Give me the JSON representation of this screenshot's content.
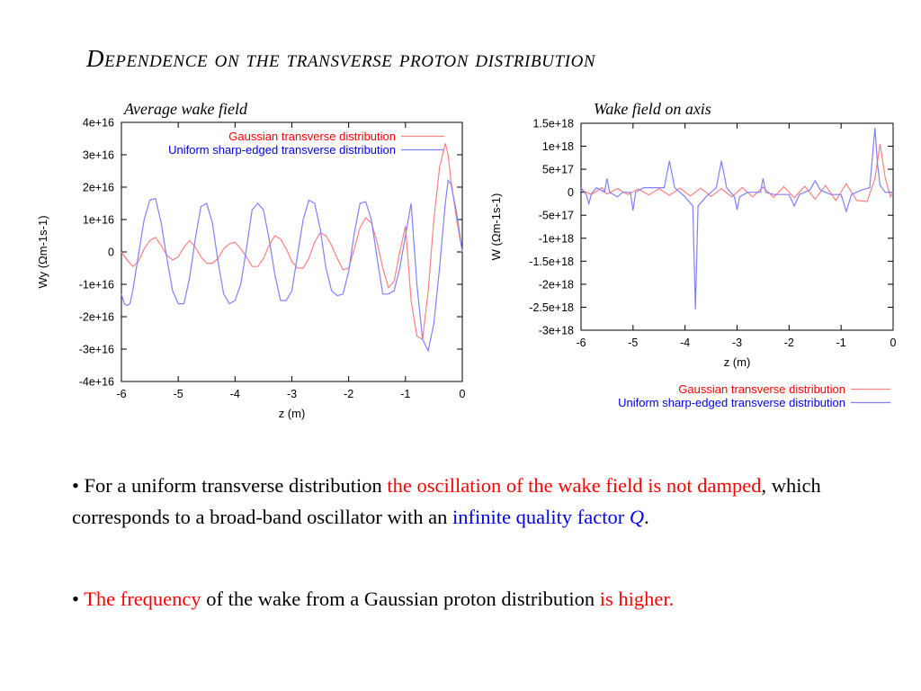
{
  "slide": {
    "title": "Dependence on the transverse proton distribution",
    "caption_left": "Average wake field",
    "caption_right": "Wake field on axis"
  },
  "bullets": {
    "b1": {
      "marker": "•",
      "t1": " For a uniform transverse distribution ",
      "t2": "the oscillation of the wake field is not damped",
      "t3": ", which corresponds to a broad-band oscillator with an ",
      "t4": "infinite quality factor ",
      "t5": "Q",
      "t6": "."
    },
    "b2": {
      "marker": "•",
      "t1": " The frequency",
      "t2": " of the wake from a Gaussian proton distribution ",
      "t3": "is higher."
    }
  },
  "colors": {
    "gaussian": "#ff8080",
    "uniform": "#8080ff",
    "legend_gaussian_text": "#ff0000",
    "legend_uniform_text": "#0000ee"
  },
  "chart_data": [
    {
      "type": "line",
      "xlabel": "z (m)",
      "ylabel": "Wy (Ωm-1s-1)",
      "xlim": [
        -6,
        0
      ],
      "ylim": [
        -4e+16,
        4e+16
      ],
      "xticks": [
        -6,
        -5,
        -4,
        -3,
        -2,
        -1,
        0
      ],
      "xtick_labels": [
        "-6",
        "-5",
        "-4",
        "-3",
        "-2",
        "-1",
        "0"
      ],
      "yticks": [
        4e+16,
        3e+16,
        2e+16,
        1e+16,
        0,
        -1e+16,
        -2e+16,
        -3e+16,
        -4e+16
      ],
      "ytick_labels": [
        "4e+16",
        "3e+16",
        "2e+16",
        "1e+16",
        "0",
        "-1e+16",
        "-2e+16",
        "-3e+16",
        "-4e+16"
      ],
      "legend_position": "top-right",
      "grid": false,
      "series": [
        {
          "name": "Gaussian transverse distribution",
          "x": [
            -6,
            -5.9,
            -5.8,
            -5.7,
            -5.6,
            -5.5,
            -5.4,
            -5.3,
            -5.2,
            -5.1,
            -5.0,
            -4.9,
            -4.8,
            -4.7,
            -4.6,
            -4.5,
            -4.4,
            -4.3,
            -4.2,
            -4.1,
            -4.0,
            -3.9,
            -3.8,
            -3.7,
            -3.6,
            -3.5,
            -3.4,
            -3.3,
            -3.2,
            -3.1,
            -3.0,
            -2.9,
            -2.8,
            -2.7,
            -2.6,
            -2.5,
            -2.4,
            -2.3,
            -2.2,
            -2.1,
            -2.0,
            -1.9,
            -1.8,
            -1.7,
            -1.6,
            -1.5,
            -1.4,
            -1.3,
            -1.2,
            -1.1,
            -1.0,
            -0.9,
            -0.8,
            -0.7,
            -0.6,
            -0.5,
            -0.4,
            -0.3,
            -0.25,
            -0.2,
            -0.1,
            0
          ],
          "y": [
            0,
            -2500000000000000.0,
            -4500000000000000.0,
            -3000000000000000.0,
            1000000000000000.0,
            3500000000000000.0,
            4500000000000000.0,
            2000000000000000.0,
            -1000000000000000.0,
            -2500000000000000.0,
            -1500000000000000.0,
            1500000000000000.0,
            3500000000000000.0,
            1500000000000000.0,
            -1500000000000000.0,
            -3500000000000000.0,
            -3500000000000000.0,
            -2000000000000000.0,
            1000000000000000.0,
            2500000000000000.0,
            3000000000000000.0,
            1000000000000000.0,
            -1500000000000000.0,
            -4500000000000000.0,
            -4500000000000000.0,
            -2000000000000000.0,
            2000000000000000.0,
            5000000000000000.0,
            4000000000000000.0,
            1000000000000000.0,
            -3000000000000000.0,
            -5000000000000000.0,
            -5000000000000000.0,
            -2000000000000000.0,
            3000000000000000.0,
            6000000000000000.0,
            5000000000000000.0,
            2000000000000000.0,
            -2000000000000000.0,
            -5500000000000000.0,
            -5000000000000000.0,
            1000000000000000.0,
            7500000000000000.0,
            1.05e+16,
            9000000000000000.0,
            3000000000000000.0,
            -5000000000000000.0,
            -1.1e+16,
            -9000000000000000.0,
            0,
            8000000000000000.0,
            -1.5e+16,
            -2.6e+16,
            -2.7e+16,
            -1.2e+16,
            1e+16,
            2.6e+16,
            3.35e+16,
            3e+16,
            2.2e+16,
            1e+16,
            0
          ]
        },
        {
          "name": "Uniform sharp-edged transverse distribution",
          "x": [
            -6,
            -5.95,
            -5.9,
            -5.85,
            -5.8,
            -5.7,
            -5.6,
            -5.5,
            -5.4,
            -5.3,
            -5.2,
            -5.1,
            -5.0,
            -4.9,
            -4.8,
            -4.7,
            -4.6,
            -4.5,
            -4.4,
            -4.3,
            -4.2,
            -4.1,
            -4.0,
            -3.9,
            -3.8,
            -3.7,
            -3.6,
            -3.5,
            -3.4,
            -3.3,
            -3.2,
            -3.1,
            -3.0,
            -2.9,
            -2.8,
            -2.7,
            -2.6,
            -2.5,
            -2.4,
            -2.3,
            -2.2,
            -2.1,
            -2.0,
            -1.9,
            -1.8,
            -1.7,
            -1.6,
            -1.5,
            -1.4,
            -1.3,
            -1.2,
            -1.1,
            -1.0,
            -0.9,
            -0.8,
            -0.7,
            -0.6,
            -0.5,
            -0.4,
            -0.3,
            -0.25,
            -0.2,
            -0.1,
            0
          ],
          "y": [
            -1.3e+16,
            -1.6e+16,
            -1.65e+16,
            -1.6e+16,
            -1.2e+16,
            -1000000000000000.0,
            1e+16,
            1.6e+16,
            1.65e+16,
            9000000000000000.0,
            -2000000000000000.0,
            -1.2e+16,
            -1.6e+16,
            -1.6e+16,
            -8000000000000000.0,
            4000000000000000.0,
            1.4e+16,
            1.5e+16,
            9000000000000000.0,
            -3000000000000000.0,
            -1.3e+16,
            -1.6e+16,
            -1.5e+16,
            -1e+16,
            1000000000000000.0,
            1.3e+16,
            1.5e+16,
            1.3e+16,
            4000000000000000.0,
            -7000000000000000.0,
            -1.5e+16,
            -1.5e+16,
            -1.2e+16,
            -1000000000000000.0,
            1e+16,
            1.6e+16,
            1.5e+16,
            7000000000000000.0,
            -5000000000000000.0,
            -1.2e+16,
            -1.35e+16,
            -1.3e+16,
            -6000000000000000.0,
            6000000000000000.0,
            1.5e+16,
            1.55e+16,
            1e+16,
            -2000000000000000.0,
            -1.3e+16,
            -1.3e+16,
            -1.2e+16,
            -5000000000000000.0,
            5000000000000000.0,
            1.5e+16,
            -1e+16,
            -2.7e+16,
            -3.05e+16,
            -2.2e+16,
            -5000000000000000.0,
            1.5e+16,
            2.2e+16,
            2.1e+16,
            1.2e+16,
            0
          ]
        }
      ]
    },
    {
      "type": "line",
      "xlabel": "z (m)",
      "ylabel": "W (Ωm-1s-1)",
      "xlim": [
        -6,
        0
      ],
      "ylim": [
        -3e+18,
        1.5e+18
      ],
      "xticks": [
        -6,
        -5,
        -4,
        -3,
        -2,
        -1,
        0
      ],
      "xtick_labels": [
        "-6",
        "-5",
        "-4",
        "-3",
        "-2",
        "-1",
        "0"
      ],
      "yticks": [
        1.5e+18,
        1e+18,
        5e+17,
        0,
        -5e+17,
        -1e+18,
        -1.5e+18,
        -2e+18,
        -2.5e+18,
        -3e+18
      ],
      "ytick_labels": [
        "1.5e+18",
        "1e+18",
        "5e+17",
        "0",
        "-5e+17",
        "-1e+18",
        "-1.5e+18",
        "-2e+18",
        "-2.5e+18",
        "-3e+18"
      ],
      "legend_position": "bottom-center",
      "grid": false,
      "series": [
        {
          "name": "Gaussian transverse distribution",
          "x": [
            -6,
            -5.8,
            -5.6,
            -5.5,
            -5.3,
            -5.1,
            -4.9,
            -4.7,
            -4.5,
            -4.3,
            -4.1,
            -3.9,
            -3.7,
            -3.5,
            -3.3,
            -3.1,
            -2.9,
            -2.7,
            -2.5,
            -2.3,
            -2.1,
            -1.9,
            -1.7,
            -1.5,
            -1.3,
            -1.1,
            -0.9,
            -0.7,
            -0.5,
            -0.35,
            -0.25,
            -0.15,
            -0.05,
            0
          ],
          "y": [
            5e+16,
            -5e+16,
            1e+17,
            -4e+16,
            8e+16,
            -5e+16,
            7e+16,
            -6e+16,
            8e+16,
            -7e+16,
            9e+16,
            -8e+16,
            9e+16,
            -9e+16,
            8e+16,
            -1e+17,
            1e+17,
            -1e+17,
            1.1e+17,
            -1.1e+17,
            1.2e+17,
            -1.2e+17,
            1.3e+17,
            -1.5e+17,
            1.5e+17,
            -1.8e+17,
            1.9e+17,
            -1.8e+17,
            -2e+17,
            3e+17,
            1.05e+18,
            3e+17,
            -1e+17,
            0
          ]
        },
        {
          "name": "Uniform sharp-edged transverse distribution",
          "x": [
            -6,
            -5.9,
            -5.85,
            -5.8,
            -5.7,
            -5.55,
            -5.5,
            -5.45,
            -5.3,
            -5.2,
            -5.05,
            -5.0,
            -4.95,
            -4.8,
            -4.4,
            -4.3,
            -4.2,
            -4.0,
            -3.85,
            -3.8,
            -3.75,
            -3.6,
            -3.4,
            -3.3,
            -3.2,
            -3.05,
            -3.0,
            -2.95,
            -2.8,
            -2.55,
            -2.5,
            -2.45,
            -2.3,
            -2.0,
            -1.9,
            -1.8,
            -1.6,
            -1.5,
            -1.4,
            -1.2,
            -1.0,
            -0.9,
            -0.8,
            -0.6,
            -0.45,
            -0.35,
            -0.3,
            -0.25,
            -0.15,
            0
          ],
          "y": [
            1e+17,
            -5e+16,
            -2.5e+17,
            -3e+16,
            1e+17,
            0,
            3e+17,
            0,
            -1e+17,
            0,
            0,
            -4e+17,
            0,
            1e+17,
            1e+17,
            6.8e+17,
            1e+17,
            -1e+17,
            -3e+17,
            -2.55e+18,
            -3e+17,
            -1e+17,
            1e+17,
            6.8e+17,
            1e+17,
            -1e+17,
            -3.8e+17,
            -1e+17,
            0,
            0,
            3e+17,
            0,
            -5e+16,
            -5e+16,
            -3e+17,
            -5e+16,
            5e+16,
            2.5e+17,
            5e+16,
            -5e+16,
            -5e+16,
            -4.2e+17,
            -5e+16,
            5e+16,
            1e+17,
            1.4e+18,
            6e+17,
            1.5e+17,
            0,
            0
          ]
        }
      ]
    }
  ]
}
